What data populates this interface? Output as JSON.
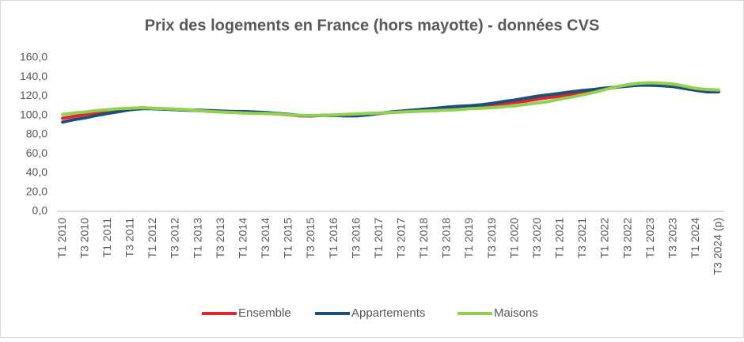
{
  "chart_data": {
    "type": "line",
    "title": "Prix des logements en France (hors mayotte) - données CVS",
    "categories": [
      "T1 2010",
      null,
      "T3 2010",
      null,
      "T1 2011",
      null,
      "T3 2011",
      null,
      "T1 2012",
      null,
      "T3 2012",
      null,
      "T1 2013",
      null,
      "T3 2013",
      null,
      "T1 2014",
      null,
      "T3 2014",
      null,
      "T1 2015",
      null,
      "T3 2015",
      null,
      "T1 2016",
      null,
      "T3 2016",
      null,
      "T1 2017",
      null,
      "T3 2017",
      null,
      "T1 2018",
      null,
      "T3 2018",
      null,
      "T1 2019",
      null,
      "T3 2019",
      null,
      "T1 2020",
      null,
      "T3 2020",
      null,
      "T1 2021",
      null,
      "T3 2021",
      null,
      "T1 2022",
      null,
      "T3 2022",
      null,
      "T1 2023",
      null,
      "T3 2023",
      null,
      "T1 2024",
      null,
      "T3 2024 (p)"
    ],
    "series": [
      {
        "name": "Ensemble",
        "color": "#e0262a",
        "values": [
          97,
          99,
          101,
          103,
          104.5,
          106,
          107,
          107.5,
          107,
          106.5,
          106,
          105.5,
          105,
          104.5,
          104,
          103.5,
          103,
          102.5,
          102,
          101.5,
          100.5,
          99.5,
          99.5,
          100,
          100,
          100,
          100.5,
          101,
          102,
          103,
          104,
          104.5,
          105,
          105.5,
          106.5,
          107.5,
          108,
          109,
          110.5,
          112,
          113.5,
          115,
          117,
          118.5,
          120,
          122,
          124,
          125.5,
          127.5,
          129.5,
          131,
          132.5,
          133,
          132.5,
          131.5,
          130,
          128,
          126.5,
          126
        ]
      },
      {
        "name": "Appartements",
        "color": "#1f4e79",
        "values": [
          93,
          95.5,
          97.5,
          100,
          102,
          104,
          106,
          107,
          107,
          106.5,
          106,
          105.5,
          105.5,
          105,
          104.5,
          104,
          104,
          103.5,
          103,
          102,
          101,
          100,
          99.5,
          100,
          100,
          99.5,
          99.5,
          100.5,
          102,
          103.5,
          104.5,
          105.5,
          106.5,
          107.5,
          108.5,
          109.5,
          110,
          111,
          112.5,
          114.5,
          116,
          118,
          120,
          121.5,
          123,
          124.5,
          126,
          127,
          128.5,
          129.5,
          130.5,
          131.5,
          131.5,
          131,
          130,
          128,
          126,
          124.5,
          124.5
        ]
      },
      {
        "name": "Maisons",
        "color": "#92d050",
        "values": [
          101,
          102.5,
          103.5,
          105,
          106,
          107,
          107.5,
          108,
          107.5,
          107,
          106.5,
          106,
          105,
          104,
          103.5,
          103,
          102.5,
          102,
          102,
          101.5,
          100.5,
          100,
          100,
          100,
          100.5,
          101,
          101.5,
          102,
          102.5,
          103,
          103.5,
          104,
          104.5,
          105,
          105.5,
          106,
          107,
          107.5,
          108,
          109,
          110,
          111.5,
          113,
          114.5,
          117,
          119,
          121.5,
          124,
          127,
          130,
          132,
          133.5,
          134,
          133.5,
          132.5,
          130.5,
          128,
          127,
          126.5
        ]
      }
    ],
    "ylim": [
      0,
      160
    ],
    "yticks": [
      {
        "value": 0,
        "label": "0,0"
      },
      {
        "value": 20,
        "label": "20,0"
      },
      {
        "value": 40,
        "label": "40,0"
      },
      {
        "value": 60,
        "label": "60,0"
      },
      {
        "value": 80,
        "label": "80,0"
      },
      {
        "value": 100,
        "label": "100,0"
      },
      {
        "value": 120,
        "label": "120,0"
      },
      {
        "value": 140,
        "label": "140,0"
      },
      {
        "value": 160,
        "label": "160,0"
      }
    ],
    "grid": false
  }
}
